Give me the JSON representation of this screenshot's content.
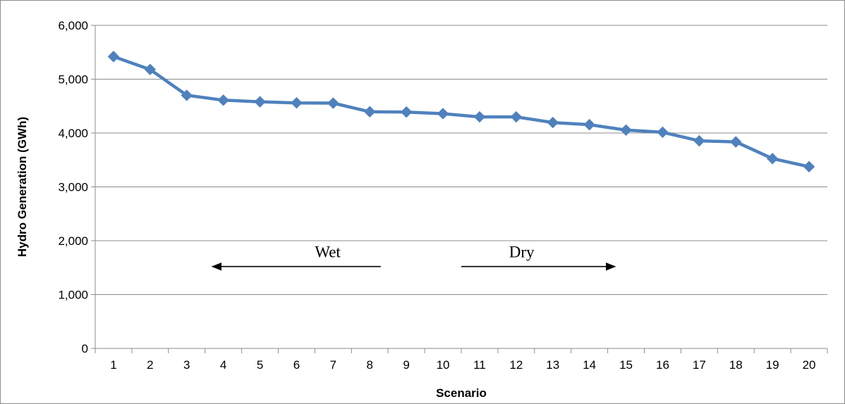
{
  "chart_data": {
    "type": "line",
    "title": "",
    "xlabel": "Scenario",
    "ylabel": "Hydro Generation (GWh)",
    "categories": [
      "1",
      "2",
      "3",
      "4",
      "5",
      "6",
      "7",
      "8",
      "9",
      "10",
      "11",
      "12",
      "13",
      "14",
      "15",
      "16",
      "17",
      "18",
      "19",
      "20"
    ],
    "series": [
      {
        "values": [
          5420,
          5180,
          4700,
          4610,
          4580,
          4560,
          4555,
          4395,
          4390,
          4360,
          4300,
          4300,
          4195,
          4155,
          4055,
          4015,
          3855,
          3835,
          3525,
          3375
        ],
        "color": "#4F81BD",
        "marker": "diamond"
      }
    ],
    "ylim": [
      0,
      6000
    ],
    "yticks": [
      0,
      1000,
      2000,
      3000,
      4000,
      5000,
      6000
    ],
    "ytick_labels": [
      "0",
      "1,000",
      "2,000",
      "3,000",
      "4,000",
      "5,000",
      "6,000"
    ],
    "grid": "horizontal",
    "legend": "none",
    "annotations": [
      {
        "text": "Wet",
        "arrow": "left",
        "arrow_from_scenario": 8.3,
        "arrow_to_scenario": 3.7,
        "y": 1520,
        "text_y": 1800
      },
      {
        "text": "Dry",
        "arrow": "right",
        "arrow_from_scenario": 10.5,
        "arrow_to_scenario": 14.7,
        "y": 1520,
        "text_y": 1800
      }
    ]
  }
}
